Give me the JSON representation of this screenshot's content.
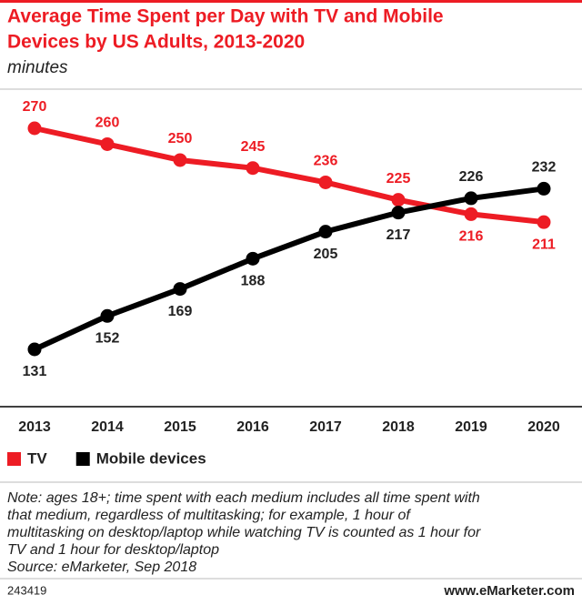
{
  "chart_data": {
    "type": "line",
    "title": [
      "Average Time Spent per Day with TV and Mobile",
      "Devices by US Adults, 2013-2020"
    ],
    "subtitle": "minutes",
    "categories": [
      "2013",
      "2014",
      "2015",
      "2016",
      "2017",
      "2018",
      "2019",
      "2020"
    ],
    "series": [
      {
        "name": "TV",
        "color": "#ed1c24",
        "values": [
          270,
          260,
          250,
          245,
          236,
          225,
          216,
          211
        ]
      },
      {
        "name": "Mobile devices",
        "color": "#000000",
        "values": [
          131,
          152,
          169,
          188,
          205,
          217,
          226,
          232
        ]
      }
    ],
    "note": [
      "Note: ages 18+; time spent with each medium includes all time spent with",
      "that medium, regardless of multitasking; for example, 1 hour of",
      "multitasking on desktop/laptop while watching TV is counted as 1 hour for",
      "TV and 1 hour for desktop/laptop"
    ],
    "source": "Source: eMarketer, Sep 2018",
    "chart_id": "243419",
    "website": "www.eMarketer.com"
  }
}
